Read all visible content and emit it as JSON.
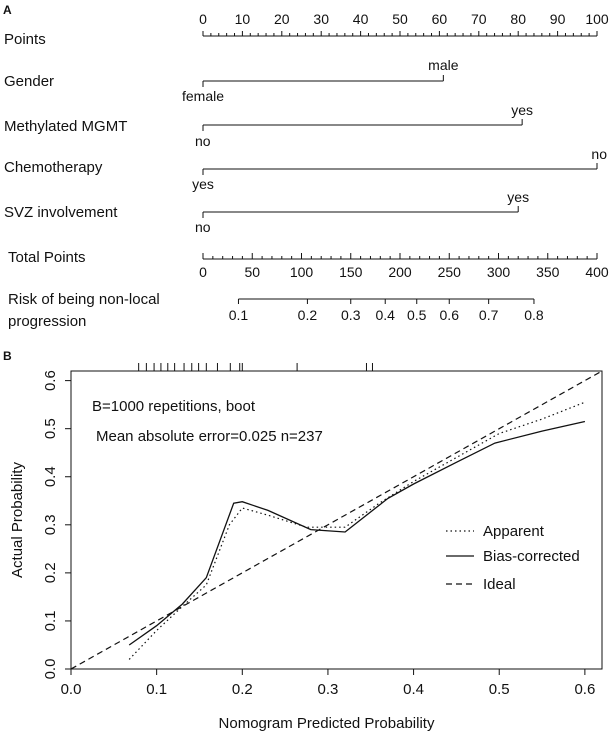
{
  "panel_a": {
    "label": "A",
    "points_label": "Points",
    "total_points_label": "Total Points",
    "risk_label_line1": "Risk of being non-local",
    "risk_label_line2": "progression"
  },
  "panel_b": {
    "label": "B",
    "annotation_line1": "B=1000 repetitions, boot",
    "annotation_line2": "Mean absolute error=0.025 n=237"
  },
  "chart_data": [
    {
      "type": "nomogram",
      "points_axis": {
        "range": [
          0,
          100
        ],
        "tick_labels": [
          0,
          10,
          20,
          30,
          40,
          50,
          60,
          70,
          80,
          90,
          100
        ],
        "minor_step": 2
      },
      "variables": [
        {
          "name": "Gender",
          "points": [
            0,
            61
          ],
          "levels": [
            "female",
            "male"
          ]
        },
        {
          "name": "Methylated MGMT",
          "points": [
            0,
            81
          ],
          "levels": [
            "no",
            "yes"
          ]
        },
        {
          "name": "Chemotherapy",
          "points": [
            0,
            100
          ],
          "levels": [
            "yes",
            "no"
          ]
        },
        {
          "name": "SVZ involvement",
          "points": [
            0,
            80
          ],
          "levels": [
            "no",
            "yes"
          ]
        }
      ],
      "total_points_axis": {
        "range": [
          0,
          400
        ],
        "tick_labels": [
          0,
          50,
          100,
          150,
          200,
          250,
          300,
          350,
          400
        ],
        "minor_step": 10
      },
      "risk_axis": {
        "ticks": [
          {
            "label": "0.1",
            "total_points": 36
          },
          {
            "label": "0.2",
            "total_points": 106
          },
          {
            "label": "0.3",
            "total_points": 150
          },
          {
            "label": "0.4",
            "total_points": 185
          },
          {
            "label": "0.5",
            "total_points": 217
          },
          {
            "label": "0.6",
            "total_points": 250
          },
          {
            "label": "0.7",
            "total_points": 290
          },
          {
            "label": "0.8",
            "total_points": 336
          }
        ]
      }
    },
    {
      "type": "line",
      "xlabel": "Nomogram Predicted Probability",
      "ylabel": "Actual Probability",
      "xlim": [
        0.0,
        0.62
      ],
      "ylim": [
        0.0,
        0.62
      ],
      "x_ticks": [
        "0.0",
        "0.1",
        "0.2",
        "0.3",
        "0.4",
        "0.5",
        "0.6"
      ],
      "y_ticks": [
        "0.0",
        "0.1",
        "0.2",
        "0.3",
        "0.4",
        "0.5",
        "0.6"
      ],
      "rug_x": [
        0.079,
        0.088,
        0.097,
        0.105,
        0.113,
        0.121,
        0.132,
        0.141,
        0.149,
        0.158,
        0.171,
        0.186,
        0.197,
        0.2,
        0.264,
        0.345,
        0.352
      ],
      "legend": {
        "position": "right",
        "entries": [
          "Apparent",
          "Bias-corrected",
          "Ideal"
        ]
      },
      "series": [
        {
          "name": "Apparent",
          "style": "dotted",
          "x": [
            0.068,
            0.1,
            0.13,
            0.158,
            0.185,
            0.2,
            0.23,
            0.275,
            0.32,
            0.36,
            0.4,
            0.45,
            0.5,
            0.55,
            0.6
          ],
          "y": [
            0.02,
            0.08,
            0.13,
            0.175,
            0.3,
            0.335,
            0.32,
            0.295,
            0.295,
            0.345,
            0.39,
            0.44,
            0.49,
            0.52,
            0.555
          ]
        },
        {
          "name": "Bias-corrected",
          "style": "solid",
          "x": [
            0.068,
            0.1,
            0.13,
            0.158,
            0.19,
            0.2,
            0.23,
            0.28,
            0.32,
            0.37,
            0.4,
            0.45,
            0.495,
            0.55,
            0.6
          ],
          "y": [
            0.05,
            0.09,
            0.135,
            0.19,
            0.345,
            0.348,
            0.33,
            0.29,
            0.285,
            0.355,
            0.385,
            0.43,
            0.47,
            0.495,
            0.515
          ]
        },
        {
          "name": "Ideal",
          "style": "dashed",
          "x": [
            0.0,
            0.62
          ],
          "y": [
            0.0,
            0.62
          ]
        }
      ]
    }
  ]
}
